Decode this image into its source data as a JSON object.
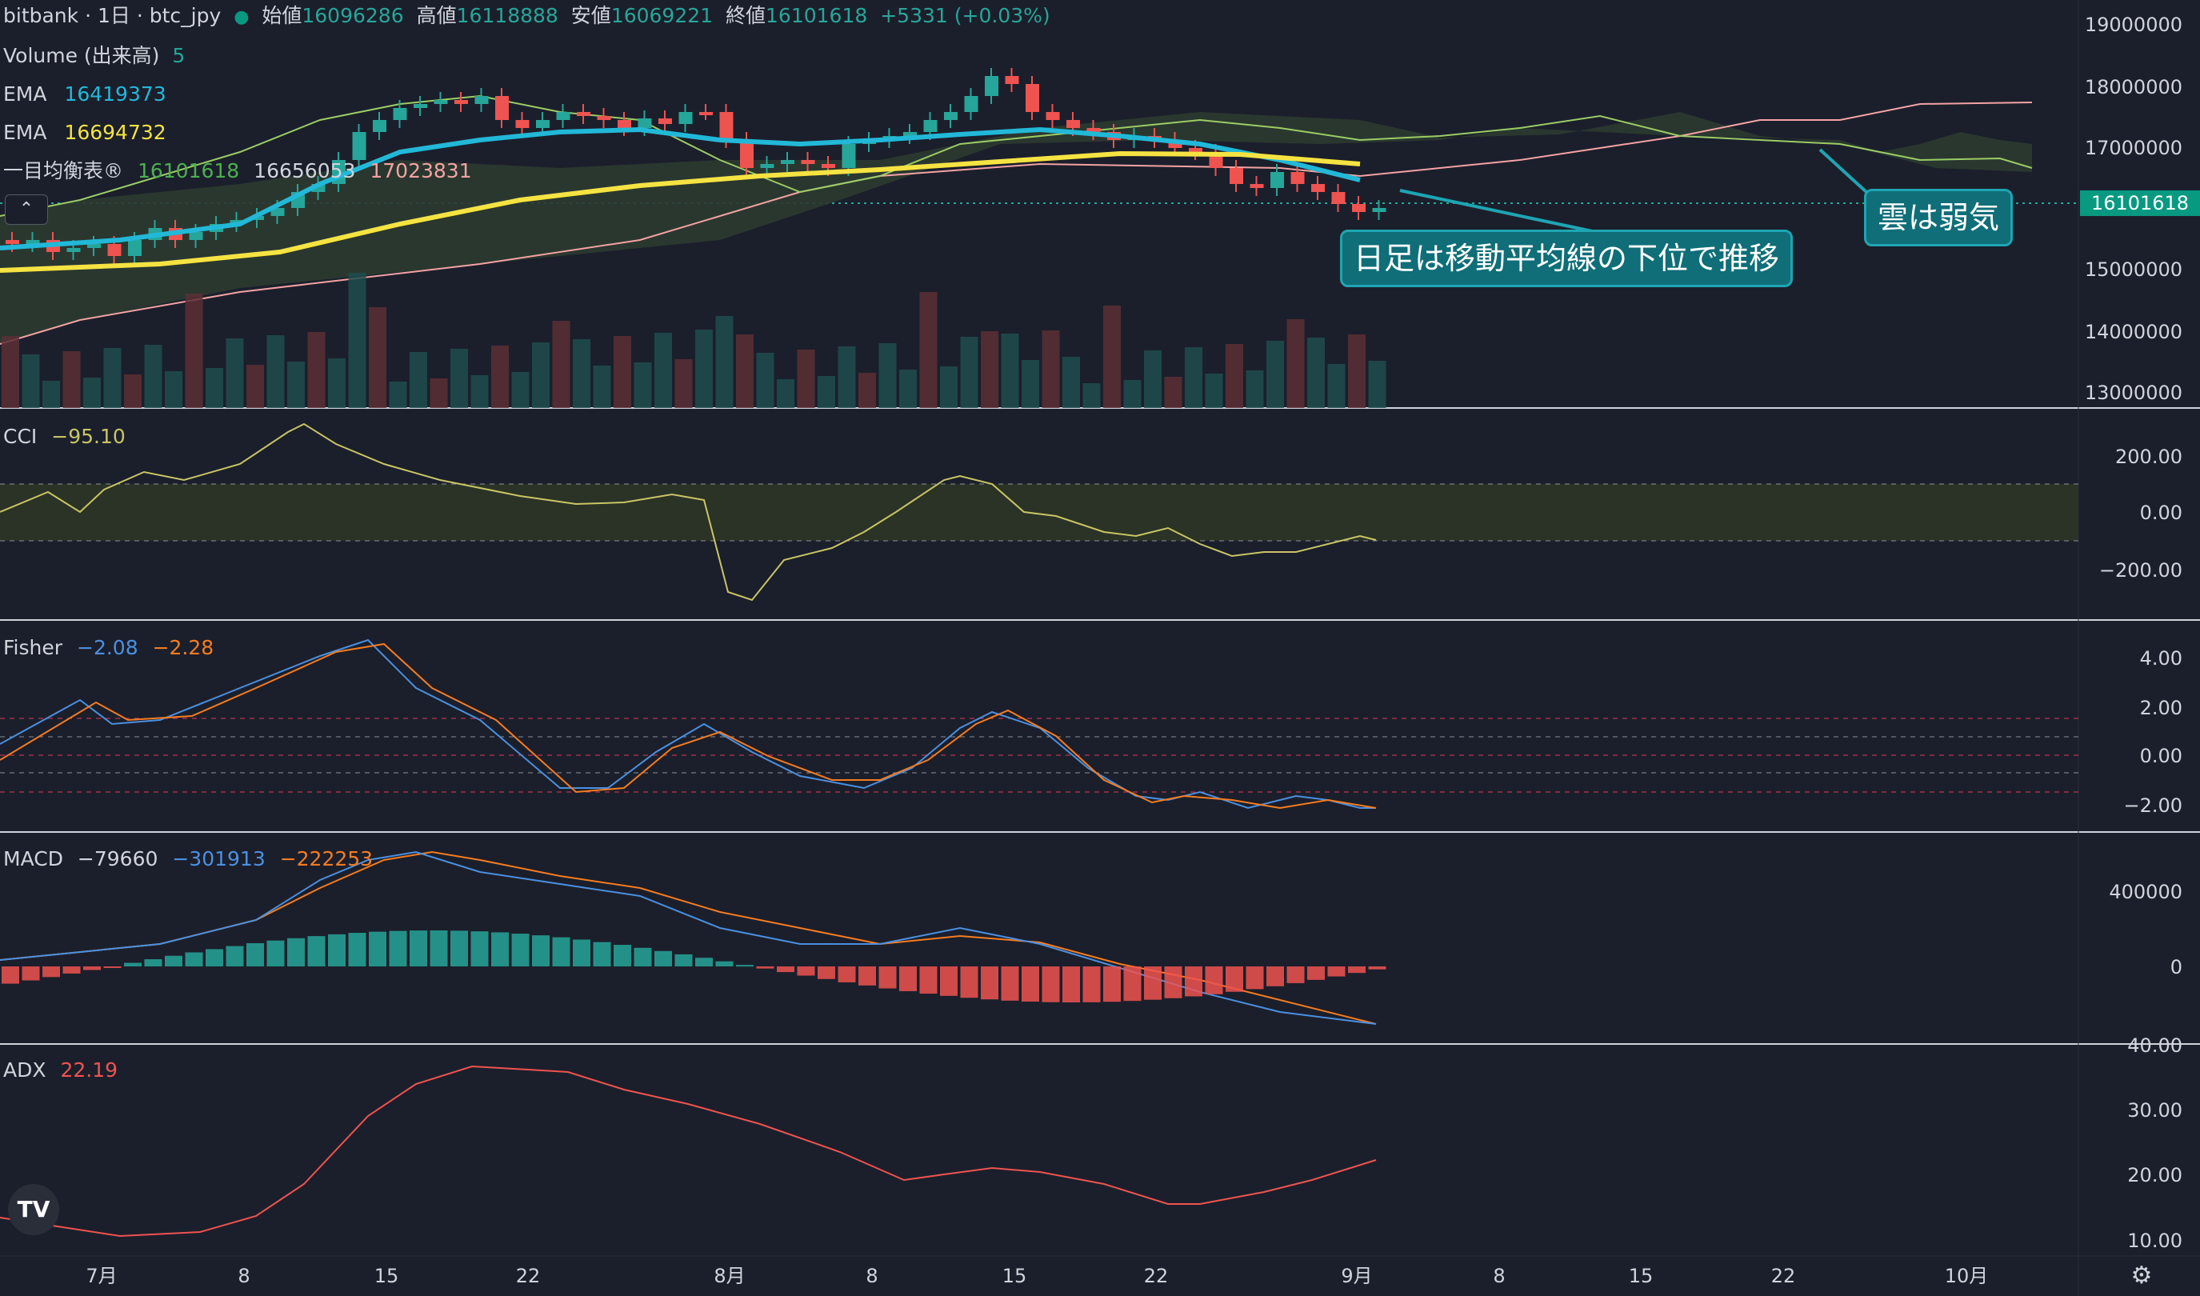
{
  "header": {
    "symbol": "bitbank · 1日 · btc_jpy",
    "open_label": "始値",
    "open_value": "16096286",
    "high_label": "高値",
    "high_value": "16118888",
    "low_label": "安値",
    "low_value": "16069221",
    "close_label": "終値",
    "close_value": "16101618",
    "change": "+5331 (+0.03%)"
  },
  "indicators": {
    "volume": {
      "label": "Volume (出来高)",
      "value": "5"
    },
    "ema1": {
      "label": "EMA",
      "value": "16419373"
    },
    "ema2": {
      "label": "EMA",
      "value": "16694732"
    },
    "ichimoku": {
      "label": "一目均衡表®",
      "v1": "16101618",
      "v2": "16656053",
      "v3": "17023831"
    },
    "cci": {
      "label": "CCI",
      "value": "−95.10"
    },
    "fisher": {
      "label": "Fisher",
      "v1": "−2.08",
      "v2": "−2.28"
    },
    "macd": {
      "label": "MACD",
      "v1": "−79660",
      "v2": "−301913",
      "v3": "−222253"
    },
    "adx": {
      "label": "ADX",
      "value": "22.19"
    }
  },
  "price_axis": [
    "19000000",
    "18000000",
    "17000000",
    "15000000",
    "14000000",
    "13000000"
  ],
  "price_badge": "16101618",
  "cci_axis": [
    "200.00",
    "0.00",
    "−200.00"
  ],
  "fisher_axis": [
    "4.00",
    "2.00",
    "0.00",
    "−2.00"
  ],
  "macd_axis": [
    "400000",
    "0"
  ],
  "adx_axis": [
    "40.00",
    "30.00",
    "20.00",
    "10.00"
  ],
  "time_axis": [
    "7月",
    "8",
    "15",
    "22",
    "8月",
    "8",
    "15",
    "22",
    "9月",
    "8",
    "15",
    "22",
    "10月"
  ],
  "callouts": {
    "trend": "日足は移動平均線の下位で推移",
    "cloud": "雲は弱気"
  },
  "colors": {
    "up": "#26a69a",
    "down": "#ef5350",
    "ema1": "#22b8d8",
    "ema2": "#f5e342",
    "cci": "#c9c565",
    "fisher": "#4a90e2",
    "trigger": "#f57c20",
    "adx": "#ef5350",
    "background": "#1b1f2b"
  },
  "collapse_icon": "chevron-up-icon",
  "logo_icon": "tradingview-logo-icon",
  "settings_icon": "gear-icon"
}
